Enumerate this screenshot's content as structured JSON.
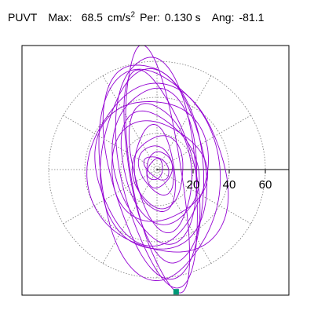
{
  "header": {
    "component": "PUVT",
    "max_label": "Max:",
    "max_value": "68.5",
    "max_unit": "cm/s",
    "max_unit_exp": "2",
    "per_label": "Per:",
    "per_value": "0.130 s",
    "ang_label": "Ang:",
    "ang_value": "-81.1"
  },
  "chart_data": {
    "type": "polar-particle-motion",
    "radial_ticks": [
      20,
      40,
      60
    ],
    "radial_tick_labels": [
      "20",
      "40",
      "60"
    ],
    "rings": [
      20,
      40,
      60
    ],
    "spokes_deg": [
      0,
      30,
      60,
      90,
      120,
      150,
      180,
      210,
      240,
      270,
      300,
      330
    ],
    "grid": true,
    "grid_style": "dotted",
    "max_radius": 68.5,
    "orientation_deg": -81.1,
    "trace_color": "#9400d3",
    "end_marker_color": "#009977",
    "orbits": [
      {
        "a": 68.5,
        "b": 14,
        "rot": -81,
        "cx": 0,
        "cy": 0
      },
      {
        "a": 64,
        "b": 21,
        "rot": -82,
        "cx": 1,
        "cy": 1
      },
      {
        "a": 60,
        "b": 26,
        "rot": -80,
        "cx": -1,
        "cy": 2
      },
      {
        "a": 58,
        "b": 33,
        "rot": -84,
        "cx": 0,
        "cy": -2
      },
      {
        "a": 54,
        "b": 18,
        "rot": -78,
        "cx": 2,
        "cy": 0
      },
      {
        "a": 50,
        "b": 29,
        "rot": -86,
        "cx": -2,
        "cy": 3
      },
      {
        "a": 47,
        "b": 38,
        "rot": -75,
        "cx": 1,
        "cy": -1
      },
      {
        "a": 43,
        "b": 23,
        "rot": -83,
        "cx": 0,
        "cy": 3
      },
      {
        "a": 40,
        "b": 31,
        "rot": -88,
        "cx": -3,
        "cy": 0
      },
      {
        "a": 36,
        "b": 16,
        "rot": -79,
        "cx": 2,
        "cy": 2
      },
      {
        "a": 32,
        "b": 20,
        "rot": -72,
        "cx": 1,
        "cy": 1
      },
      {
        "a": 28,
        "b": 26,
        "rot": -60,
        "cx": 0,
        "cy": -1
      },
      {
        "a": 24,
        "b": 11,
        "rot": -84,
        "cx": -1,
        "cy": 0
      },
      {
        "a": 20,
        "b": 14,
        "rot": -90,
        "cx": 1,
        "cy": -1
      },
      {
        "a": 14,
        "b": 9,
        "rot": -70,
        "cx": 0,
        "cy": 0
      },
      {
        "a": 10,
        "b": 7,
        "rot": -100,
        "cx": 1,
        "cy": 0
      },
      {
        "a": 8,
        "b": 5,
        "rot": -40,
        "cx": 0,
        "cy": 1
      },
      {
        "a": 6,
        "b": 4,
        "rot": -110,
        "cx": -1,
        "cy": 0
      }
    ],
    "end_point": {
      "r": 68.5,
      "theta_deg": -81.1
    }
  }
}
